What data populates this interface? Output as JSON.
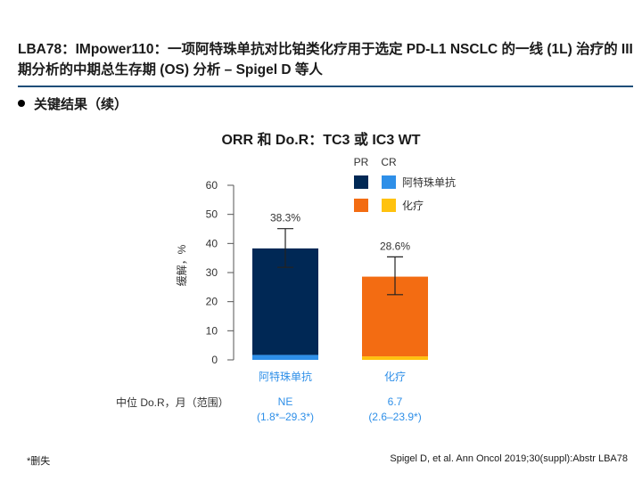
{
  "slide": {
    "title": "LBA78：IMpower110：一项阿特珠单抗对比铂类化疗用于选定 PD-L1 NSCLC 的一线 (1L) 治疗的 III 期分析的中期总生存期 (OS) 分析 – Spigel D 等人",
    "bullet": "关键结果（续）",
    "footnote": "*删失",
    "citation": "Spigel D, et al. Ann Oncol 2019;30(suppl):Abstr LBA78"
  },
  "chart_data": {
    "type": "bar",
    "title": "ORR 和 Do.R：TC3 或 IC3 WT",
    "ylabel": "缓解，%",
    "xlabel": "",
    "ylim": [
      0,
      60
    ],
    "yticks": [
      0,
      10,
      20,
      30,
      40,
      50,
      60
    ],
    "categories": [
      "阿特珠单抗",
      "化疗"
    ],
    "series": [
      {
        "name": "CR",
        "values": [
          1.7,
          1.2
        ]
      },
      {
        "name": "PR",
        "values": [
          36.6,
          27.4
        ]
      }
    ],
    "totals": [
      38.3,
      28.6
    ],
    "total_labels": [
      "38.3%",
      "28.6%"
    ],
    "error_bars": [
      [
        31.8,
        45.1
      ],
      [
        22.4,
        35.4
      ]
    ],
    "legend": {
      "column_headers": [
        "PR",
        "CR"
      ],
      "rows": [
        {
          "label": "阿特珠单抗",
          "pr_color": "#002855",
          "cr_color": "#2e8fe8"
        },
        {
          "label": "化疗",
          "pr_color": "#f36c12",
          "cr_color": "#ffc20e"
        }
      ]
    },
    "median_dor_label": "中位 Do.R，月（范围）",
    "median_dor": [
      {
        "value": "NE",
        "range": "(1.8*–29.3*)"
      },
      {
        "value": "6.7",
        "range": "(2.6–23.9*)"
      }
    ],
    "colors": {
      "atezolizumab_pr": "#002855",
      "atezolizumab_cr": "#2e8fe8",
      "chemo_pr": "#f36c12",
      "chemo_cr": "#ffc20e",
      "category_text": "#2e8fe8",
      "axis": "#555555"
    }
  }
}
